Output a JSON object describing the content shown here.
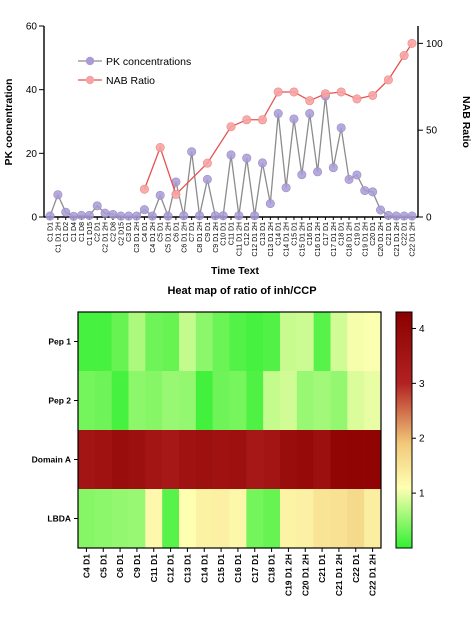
{
  "chart_data": [
    {
      "type": "line",
      "xlabel": "Time Text",
      "ylabel": "PK cocnentration",
      "y2label": "NAB Ratio",
      "ylim": [
        0,
        60
      ],
      "y2lim": [
        0,
        110
      ],
      "yticks": [
        "0",
        "20",
        "40",
        "60"
      ],
      "y2ticks": [
        "0",
        "50",
        "100"
      ],
      "grid": false,
      "legend_position": "top-left",
      "categories": [
        "C1 D1",
        "C1 D1 2H",
        "C1 D2",
        "C1 D4",
        "C1 D8",
        "C1 D15",
        "C2 D1",
        "C2 D1 2H",
        "C2 D8",
        "C2 D15",
        "C3 D1",
        "C3 D1 2H",
        "C4 D1",
        "C4 D1 2H",
        "C5 D1",
        "C5 D1 2H",
        "C6 D1",
        "C6 D1 2H",
        "C7 D1",
        "C8 D1 2H",
        "C9 D1",
        "C9 D1 2H",
        "C10 D1",
        "C11 D1",
        "C11 D1 2H",
        "C12 D1",
        "C12 D1 2H",
        "C13 D1",
        "C13 D1 2H",
        "C14 D1",
        "C14 D1 2H",
        "C15 D1",
        "C15 D1 2H",
        "C16 D1",
        "C16 D1 2H",
        "C17 D1",
        "C17 D1 2H",
        "C18 D1",
        "C18 D1 2H",
        "C19 D1",
        "C19 D1 2H",
        "C20 D1",
        "C20 D1 2H",
        "C21 D1",
        "C21 D1 2H",
        "C22 D1",
        "C22 D1 2H"
      ],
      "series": [
        {
          "name": "PK concentrations",
          "axis": "left",
          "color": "#a99bd6",
          "values": [
            0.3,
            7,
            1.5,
            0.2,
            0.5,
            0.5,
            3.5,
            1.2,
            0.8,
            0.3,
            0.3,
            0.3,
            2.3,
            0.3,
            6.8,
            0.3,
            11,
            0.4,
            20.5,
            0.4,
            11.8,
            0.4,
            0.4,
            19.5,
            0.4,
            18.5,
            0.4,
            17,
            4.2,
            32.5,
            9.2,
            30.8,
            13.3,
            32.5,
            14.2,
            38,
            15.5,
            28,
            11.8,
            13.2,
            8.3,
            7.9,
            2.2,
            0.5,
            0.3,
            0.3,
            0.3
          ]
        },
        {
          "name": "NAB Ratio",
          "axis": "right",
          "color": "#f07f7f",
          "values": [
            null,
            null,
            null,
            null,
            null,
            null,
            null,
            null,
            null,
            null,
            null,
            null,
            16,
            null,
            40,
            null,
            13,
            null,
            null,
            null,
            31,
            null,
            null,
            52,
            null,
            56,
            null,
            56,
            null,
            72,
            null,
            72,
            null,
            67,
            null,
            71,
            null,
            72,
            null,
            68,
            null,
            70,
            null,
            79,
            null,
            93,
            100
          ]
        }
      ]
    },
    {
      "type": "heatmap",
      "title": "Heat map of ratio of inh/CCP",
      "rows": [
        "Pep 1",
        "Pep 2",
        "Domain A",
        "LBDA"
      ],
      "columns": [
        "C4 D1",
        "C5 D1",
        "C6 D1",
        "C9 D1",
        "C11 D1",
        "C12 D1",
        "C13 D1",
        "C14 D1",
        "C15 D1",
        "C16 D1",
        "C17 D1",
        "C18 D1",
        "C19 D1 2H",
        "C20 D1 2H",
        "C21 D1",
        "C21 D1 2H",
        "C22 D1",
        "C22 D1 2H"
      ],
      "values": [
        [
          0.1,
          0.1,
          0.28,
          0.65,
          0.32,
          0.28,
          0.78,
          0.48,
          0.3,
          0.18,
          0.1,
          0.16,
          0.8,
          0.82,
          0.2,
          0.85,
          1.05,
          1.08
        ],
        [
          0.35,
          0.32,
          0.1,
          0.48,
          0.45,
          0.55,
          0.52,
          0.08,
          0.32,
          0.36,
          0.15,
          0.78,
          0.85,
          0.55,
          0.6,
          0.52,
          0.9,
          0.98
        ],
        [
          3.5,
          3.6,
          3.8,
          3.7,
          3.5,
          3.4,
          3.6,
          3.7,
          3.6,
          3.7,
          3.4,
          3.5,
          3.8,
          3.9,
          3.7,
          4.1,
          4.15,
          4.15
        ],
        [
          0.45,
          0.48,
          0.52,
          0.55,
          1.2,
          0.2,
          1.1,
          1.3,
          1.32,
          1.22,
          0.35,
          0.28,
          1.28,
          1.32,
          1.5,
          1.55,
          1.65,
          1.35
        ]
      ],
      "colorbar": {
        "range": [
          0,
          4.3
        ],
        "ticks": [
          "1",
          "2",
          "3",
          "4"
        ],
        "colors": [
          "#33f033",
          "#ffffb2",
          "#f2c97a",
          "#b22222",
          "#8b0000"
        ]
      }
    }
  ]
}
